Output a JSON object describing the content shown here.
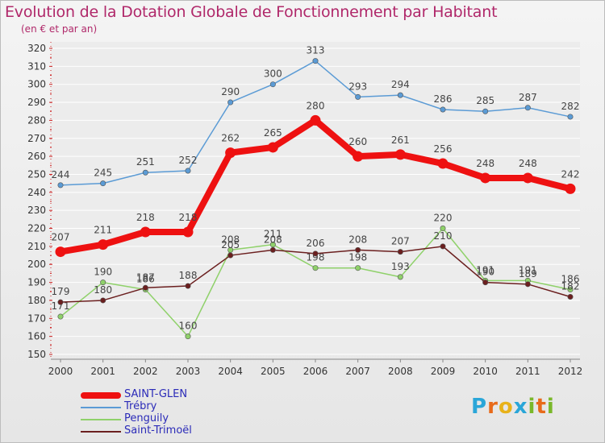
{
  "header": {
    "title": "Evolution de la Dotation Globale de Fonctionnement par Habitant",
    "subtitle": "(en € et par an)"
  },
  "logo": {
    "letters": [
      "P",
      "r",
      "o",
      "x",
      "i",
      "t",
      "i"
    ],
    "colors": [
      "#2aa6d8",
      "#e86a1a",
      "#e8b21a",
      "#2aa6d8",
      "#7ab82a",
      "#e86a1a",
      "#7ab82a"
    ]
  },
  "chart_data": {
    "type": "line",
    "x": [
      "2000",
      "2001",
      "2002",
      "2003",
      "2004",
      "2005",
      "2006",
      "2007",
      "2008",
      "2009",
      "2010",
      "2011",
      "2012"
    ],
    "ylim": [
      150,
      320
    ],
    "yticks": [
      150,
      160,
      170,
      180,
      190,
      200,
      210,
      220,
      230,
      240,
      250,
      260,
      270,
      280,
      290,
      300,
      310,
      320
    ],
    "grid": true,
    "legend_position": "bottom-left",
    "series": [
      {
        "name": "Trébry",
        "color": "#5b9bd5",
        "values": [
          244,
          245,
          251,
          252,
          290,
          300,
          313,
          293,
          294,
          286,
          285,
          287,
          282
        ],
        "labels": [
          "244",
          "245",
          "251",
          "252",
          "290",
          "300",
          "313",
          "293",
          "294",
          "286",
          "285",
          "287",
          "282"
        ]
      },
      {
        "name": "Penguily",
        "color": "#8fd16a",
        "values": [
          171,
          190,
          186,
          160,
          208,
          211,
          198,
          198,
          193,
          220,
          191,
          191,
          186
        ],
        "labels": [
          "171",
          "190",
          "186",
          "160",
          "208",
          "211",
          "198",
          "198",
          "193",
          "220",
          "191",
          "191",
          "186"
        ]
      },
      {
        "name": "Saint-Trimoël",
        "color": "#6b1f1f",
        "values": [
          179,
          180,
          187,
          188,
          205,
          208,
          206,
          208,
          207,
          210,
          190,
          189,
          182
        ],
        "labels": [
          "179",
          "180",
          "187",
          "188",
          "205",
          "208",
          "206",
          "208",
          "207",
          "210",
          "190",
          "189",
          "182"
        ]
      },
      {
        "name": "SAINT-GLEN",
        "color": "#ee1111",
        "values": [
          207,
          211,
          218,
          218,
          262,
          265,
          280,
          260,
          261,
          256,
          248,
          248,
          242
        ],
        "labels": [
          "207",
          "211",
          "218",
          "218",
          "262",
          "265",
          "280",
          "260",
          "261",
          "256",
          "248",
          "248",
          "242"
        ]
      }
    ],
    "legend": [
      "SAINT-GLEN",
      "Trébry",
      "Penguily",
      "Saint-Trimoël"
    ]
  }
}
